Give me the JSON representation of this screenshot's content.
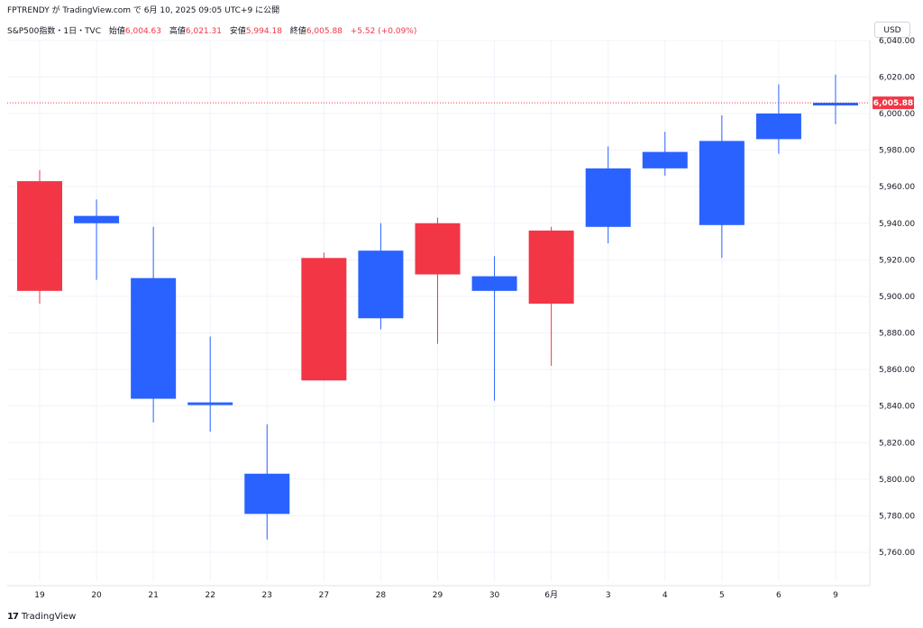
{
  "header": {
    "publisher_line": "FPTRENDY が TradingView.com で 6月 10, 2025 09:05 UTC+9 に公開"
  },
  "legend": {
    "symbol": "S&P500指数・1日・TVC",
    "open_label": "始値",
    "open_value": "6,004.63",
    "high_label": "高値",
    "high_value": "6,021.31",
    "low_label": "安値",
    "low_value": "5,994.18",
    "close_label": "終値",
    "close_value": "6,005.88",
    "change": "+5.52 (+0.09%)"
  },
  "currency_button": "USD",
  "brand": {
    "logo": "17",
    "name": "TradingView"
  },
  "colors": {
    "up": "#2962ff",
    "down": "#f23645",
    "grid": "#f0f3fa",
    "axis_text": "#131722"
  },
  "chart_data": {
    "type": "candlestick",
    "x_tick_labels": [
      "19",
      "20",
      "21",
      "22",
      "23",
      "27",
      "28",
      "29",
      "30",
      "6月",
      "3",
      "4",
      "5",
      "6",
      "9"
    ],
    "y_tick_labels": [
      "5,760.00",
      "5,780.00",
      "5,800.00",
      "5,820.00",
      "5,840.00",
      "5,860.00",
      "5,880.00",
      "5,900.00",
      "5,920.00",
      "5,940.00",
      "5,960.00",
      "5,980.00",
      "6,000.00",
      "6,020.00",
      "6,040.00"
    ],
    "y_ticks": [
      5760,
      5780,
      5800,
      5820,
      5840,
      5860,
      5880,
      5900,
      5920,
      5940,
      5960,
      5980,
      6000,
      6020,
      6040
    ],
    "ylim": [
      5740,
      6050
    ],
    "last_price": 6005.88,
    "last_price_label": "6,005.88",
    "candles": [
      {
        "date": "19",
        "open": 5963,
        "high": 5969,
        "low": 5896,
        "close": 5903
      },
      {
        "date": "20",
        "open": 5940,
        "high": 5953,
        "low": 5909,
        "close": 5944
      },
      {
        "date": "21",
        "open": 5844,
        "high": 5938,
        "low": 5831,
        "close": 5910
      },
      {
        "date": "22",
        "open": 5841,
        "high": 5878,
        "low": 5826,
        "close": 5842
      },
      {
        "date": "23",
        "open": 5781,
        "high": 5830,
        "low": 5767,
        "close": 5803
      },
      {
        "date": "27",
        "open": 5921,
        "high": 5924,
        "low": 5854,
        "close": 5854
      },
      {
        "date": "28",
        "open": 5888,
        "high": 5940,
        "low": 5882,
        "close": 5925
      },
      {
        "date": "29",
        "open": 5940,
        "high": 5943,
        "low": 5874,
        "close": 5912
      },
      {
        "date": "30",
        "open": 5903,
        "high": 5922,
        "low": 5843,
        "close": 5911
      },
      {
        "date": "6月",
        "open": 5936,
        "high": 5938,
        "low": 5862,
        "close": 5896
      },
      {
        "date": "3",
        "open": 5938,
        "high": 5982,
        "low": 5929,
        "close": 5970
      },
      {
        "date": "4",
        "open": 5970,
        "high": 5990,
        "low": 5966,
        "close": 5979
      },
      {
        "date": "5",
        "open": 5939,
        "high": 5999,
        "low": 5921,
        "close": 5985
      },
      {
        "date": "6",
        "open": 5986,
        "high": 6016,
        "low": 5978,
        "close": 6000
      },
      {
        "date": "9",
        "open": 6004.63,
        "high": 6021.31,
        "low": 5994.18,
        "close": 6005.88
      }
    ]
  }
}
